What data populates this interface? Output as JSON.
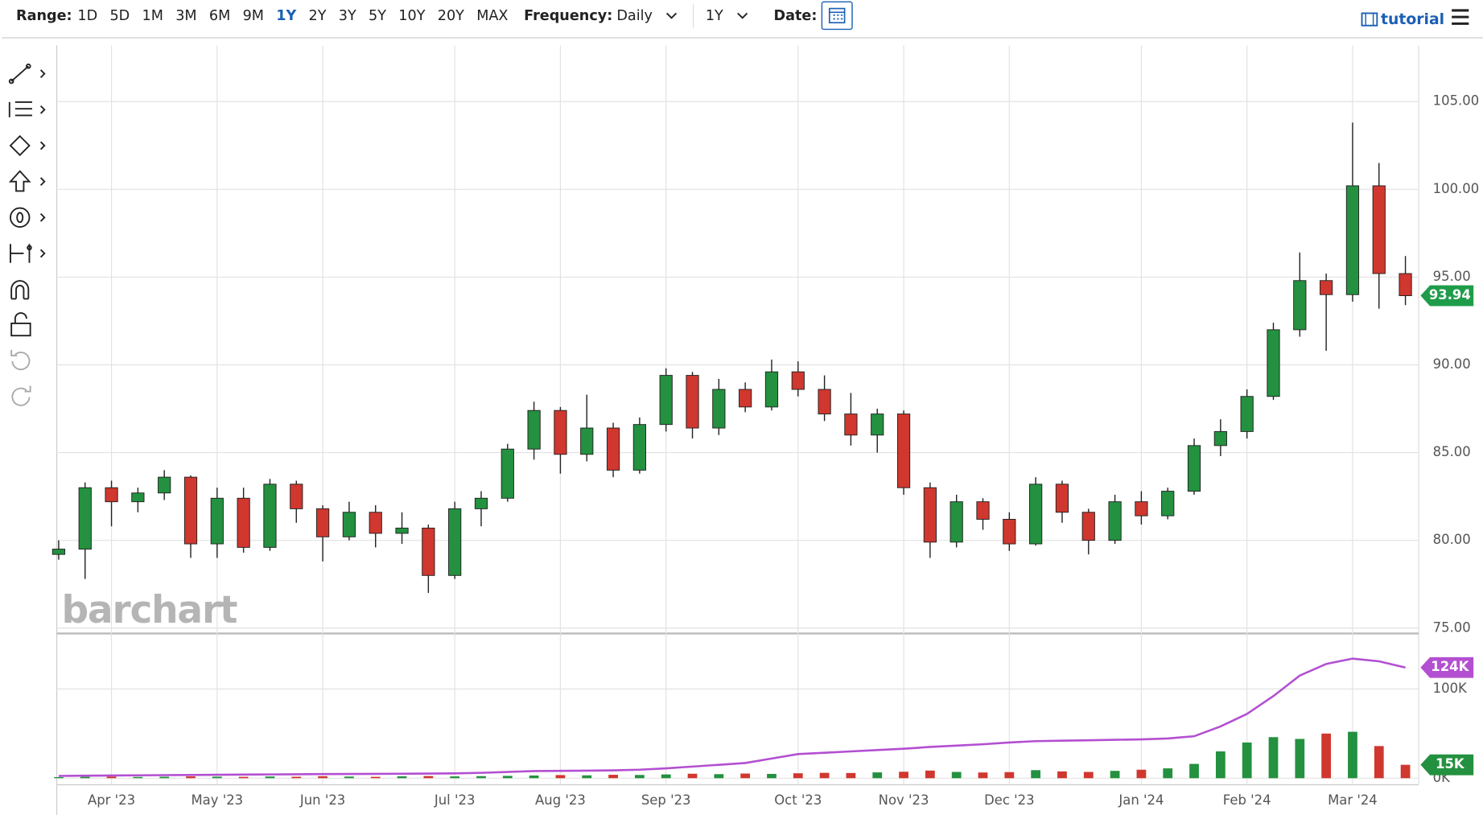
{
  "toolbar": {
    "range_label": "Range:",
    "ranges": [
      "1D",
      "5D",
      "1M",
      "3M",
      "6M",
      "9M",
      "1Y",
      "2Y",
      "3Y",
      "5Y",
      "10Y",
      "20Y",
      "MAX"
    ],
    "selected_range": 6,
    "frequency_label": "Frequency:",
    "frequency": "Daily",
    "period": "1Y",
    "date_label": "Date:",
    "tutorial": "tutorial"
  },
  "watermark": "barchart",
  "chart_data": [
    {
      "type": "candlestick",
      "categories": [
        null,
        null,
        "Apr '23",
        null,
        null,
        null,
        "May '23",
        null,
        null,
        null,
        "Jun '23",
        null,
        null,
        null,
        null,
        "Jul '23",
        null,
        null,
        null,
        "Aug '23",
        null,
        null,
        null,
        "Sep '23",
        null,
        null,
        null,
        null,
        "Oct '23",
        null,
        null,
        null,
        "Nov '23",
        null,
        null,
        null,
        "Dec '23",
        null,
        null,
        null,
        null,
        "Jan '24",
        null,
        null,
        null,
        "Feb '24",
        null,
        null,
        null,
        "Mar '24",
        null,
        null
      ],
      "open": [
        79.2,
        79.5,
        83.0,
        82.2,
        82.7,
        83.6,
        79.8,
        82.4,
        79.6,
        83.2,
        81.8,
        80.2,
        81.6,
        80.4,
        80.7,
        78.0,
        81.8,
        82.4,
        85.2,
        87.4,
        84.9,
        86.4,
        84.0,
        86.6,
        89.4,
        86.4,
        88.6,
        87.6,
        89.6,
        88.6,
        87.2,
        86.0,
        87.2,
        83.0,
        79.9,
        82.2,
        81.2,
        79.8,
        83.2,
        81.6,
        80.0,
        82.2,
        81.4,
        82.8,
        85.4,
        86.2,
        88.2,
        92.0,
        94.8,
        94.0,
        100.2,
        95.2
      ],
      "high": [
        80.0,
        83.3,
        83.4,
        83.0,
        84.0,
        83.7,
        83.0,
        83.0,
        83.5,
        83.4,
        82.0,
        82.2,
        82.0,
        81.6,
        80.9,
        82.2,
        82.8,
        85.5,
        87.9,
        87.6,
        88.3,
        86.7,
        87.0,
        89.8,
        89.6,
        89.2,
        89.0,
        90.3,
        90.2,
        89.4,
        88.4,
        87.5,
        87.4,
        83.3,
        82.6,
        82.4,
        81.6,
        83.6,
        83.4,
        81.8,
        82.6,
        82.8,
        83.0,
        85.8,
        86.9,
        88.6,
        92.4,
        96.4,
        95.2,
        103.8,
        101.5,
        96.2
      ],
      "low": [
        78.9,
        77.8,
        80.8,
        81.6,
        82.3,
        79.0,
        79.0,
        79.3,
        79.4,
        81.0,
        78.8,
        80.0,
        79.6,
        79.8,
        77.0,
        77.8,
        80.8,
        82.2,
        84.6,
        83.8,
        84.5,
        83.6,
        83.8,
        86.2,
        85.8,
        86.0,
        87.3,
        87.4,
        88.2,
        86.8,
        85.4,
        85.0,
        82.6,
        79.0,
        79.6,
        80.6,
        79.4,
        79.7,
        81.0,
        79.2,
        79.8,
        80.9,
        81.2,
        82.6,
        84.8,
        85.8,
        88.0,
        91.6,
        90.8,
        93.6,
        93.2,
        93.4
      ],
      "close": [
        79.5,
        83.0,
        82.2,
        82.7,
        83.6,
        79.8,
        82.4,
        79.6,
        83.2,
        81.8,
        80.2,
        81.6,
        80.4,
        80.7,
        78.0,
        81.8,
        82.4,
        85.2,
        87.4,
        84.9,
        86.4,
        84.0,
        86.6,
        89.4,
        86.4,
        88.6,
        87.6,
        89.6,
        88.6,
        87.2,
        86.0,
        87.2,
        83.0,
        79.9,
        82.2,
        81.2,
        79.8,
        83.2,
        81.6,
        80.0,
        82.2,
        81.4,
        82.8,
        85.4,
        86.2,
        88.2,
        92.0,
        94.8,
        94.0,
        100.2,
        95.2,
        93.94
      ],
      "up_color": "#23913f",
      "down_color": "#d0372e",
      "ylim": [
        74.8,
        108.2
      ],
      "yticks": [
        {
          "value": 75,
          "label": "75.00"
        },
        {
          "value": 80,
          "label": "80.00"
        },
        {
          "value": 85,
          "label": "85.00"
        },
        {
          "value": 90,
          "label": "90.00"
        },
        {
          "value": 95,
          "label": "95.00"
        },
        {
          "value": 100,
          "label": "100.00"
        },
        {
          "value": 105,
          "label": "105.00"
        }
      ],
      "grid": true,
      "badge_color": "#1f9c4a"
    },
    {
      "type": "volume",
      "volume": [
        1200,
        1500,
        1800,
        1400,
        1600,
        2000,
        1700,
        1500,
        1900,
        1600,
        2200,
        1800,
        1500,
        2100,
        2400,
        2000,
        2300,
        2600,
        3000,
        3500,
        3200,
        3800,
        3600,
        4200,
        5000,
        4500,
        5200,
        4800,
        5500,
        6000,
        5800,
        6500,
        7200,
        8500,
        7000,
        6400,
        6800,
        9000,
        7600,
        7000,
        8200,
        9500,
        11000,
        16000,
        30000,
        40000,
        46000,
        44000,
        50000,
        52000,
        36000,
        15000
      ],
      "open_interest": [
        2500,
        2800,
        3000,
        3200,
        3400,
        3600,
        3800,
        4000,
        4200,
        4400,
        4600,
        4700,
        4800,
        5000,
        5200,
        5400,
        6000,
        7000,
        8000,
        8200,
        8400,
        8800,
        9500,
        11000,
        13000,
        15000,
        17000,
        22000,
        27000,
        28500,
        30000,
        31500,
        33000,
        35000,
        36500,
        38000,
        40000,
        41500,
        42000,
        42500,
        43000,
        43500,
        44500,
        47000,
        58000,
        72000,
        92000,
        115000,
        128000,
        134000,
        131000,
        124000
      ],
      "oi_color": "#b34fd1",
      "volume_badge_color": "#23913f",
      "ylim": [
        0,
        160000
      ],
      "yticks": [
        {
          "value": 0,
          "label": "0K"
        },
        {
          "value": 100000,
          "label": "100K"
        }
      ],
      "last_labels": {
        "open_interest": "124K",
        "volume": "15K"
      }
    }
  ]
}
